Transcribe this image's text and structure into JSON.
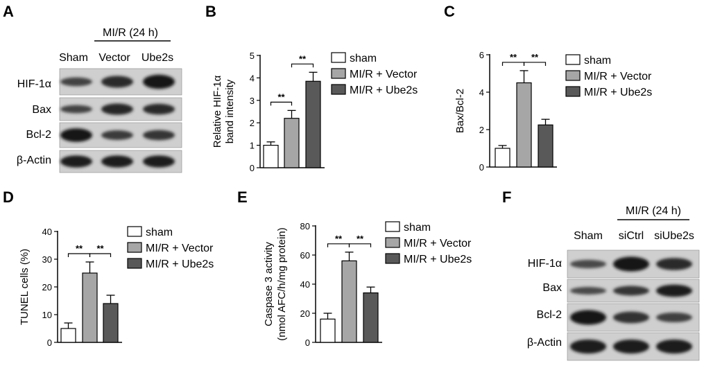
{
  "panels": {
    "A": {
      "label": "A",
      "group_header": "MI/R (24 h)",
      "lanes": [
        "Sham",
        "Vector",
        "Ube2s"
      ],
      "rows": [
        {
          "name": "HIF-1α",
          "bands": [
            0.45,
            0.7,
            0.9
          ]
        },
        {
          "name": "Bax",
          "bands": [
            0.45,
            0.75,
            0.7
          ]
        },
        {
          "name": "Bcl-2",
          "bands": [
            0.9,
            0.55,
            0.6
          ]
        },
        {
          "name": "β-Actin",
          "bands": [
            0.85,
            0.85,
            0.85
          ]
        }
      ]
    },
    "F": {
      "label": "F",
      "group_header": "MI/R (24 h)",
      "lanes": [
        "Sham",
        "siCtrl",
        "siUbe2s"
      ],
      "rows": [
        {
          "name": "HIF-1α",
          "bands": [
            0.4,
            0.9,
            0.7
          ]
        },
        {
          "name": "Bax",
          "bands": [
            0.4,
            0.6,
            0.85
          ]
        },
        {
          "name": "Bcl-2",
          "bands": [
            0.9,
            0.65,
            0.5
          ]
        },
        {
          "name": "β-Actin",
          "bands": [
            0.85,
            0.85,
            0.85
          ]
        }
      ]
    }
  },
  "legend": {
    "labels": [
      "sham",
      "MI/R + Vector",
      "MI/R + Ube2s"
    ],
    "colors": [
      "#ffffff",
      "#a6a6a6",
      "#595959"
    ]
  },
  "significance": "**",
  "chart_data": [
    {
      "panel": "B",
      "type": "bar",
      "categories": [
        "sham",
        "MI/R + Vector",
        "MI/R + Ube2s"
      ],
      "values": [
        1.0,
        2.2,
        3.85
      ],
      "errors": [
        0.15,
        0.35,
        0.4
      ],
      "ylabel": [
        "Relative HIF-1α",
        "band intensity"
      ],
      "ylim": [
        0,
        5
      ],
      "yticks": [
        "0",
        "1",
        "2",
        "3",
        "4",
        "5"
      ],
      "comparisons": [
        [
          0,
          1
        ],
        [
          1,
          2
        ]
      ]
    },
    {
      "panel": "C",
      "type": "bar",
      "categories": [
        "sham",
        "MI/R + Vector",
        "MI/R + Ube2s"
      ],
      "values": [
        1.0,
        4.5,
        2.25
      ],
      "errors": [
        0.15,
        0.65,
        0.3
      ],
      "ylabel": [
        "Bax/Bcl-2"
      ],
      "ylim": [
        0,
        6
      ],
      "yticks": [
        "0",
        "2",
        "4",
        "6"
      ],
      "comparisons": [
        [
          0,
          1
        ],
        [
          1,
          2
        ]
      ]
    },
    {
      "panel": "D",
      "type": "bar",
      "categories": [
        "sham",
        "MI/R + Vector",
        "MI/R + Ube2s"
      ],
      "values": [
        5,
        25,
        14
      ],
      "errors": [
        2,
        4,
        3
      ],
      "ylabel": [
        "TUNEL cells (%)"
      ],
      "ylim": [
        0,
        40
      ],
      "yticks": [
        "0",
        "10",
        "20",
        "30",
        "40"
      ],
      "comparisons": [
        [
          0,
          1
        ],
        [
          1,
          2
        ]
      ]
    },
    {
      "panel": "E",
      "type": "bar",
      "categories": [
        "sham",
        "MI/R + Vector",
        "MI/R + Ube2s"
      ],
      "values": [
        16,
        56,
        34
      ],
      "errors": [
        4,
        6,
        4
      ],
      "ylabel": [
        "Caspase 3 activity",
        "(nmol AFC/h/mg protein)"
      ],
      "ylim": [
        0,
        80
      ],
      "yticks": [
        "0",
        "20",
        "40",
        "60",
        "80"
      ],
      "comparisons": [
        [
          0,
          1
        ],
        [
          1,
          2
        ]
      ]
    }
  ]
}
